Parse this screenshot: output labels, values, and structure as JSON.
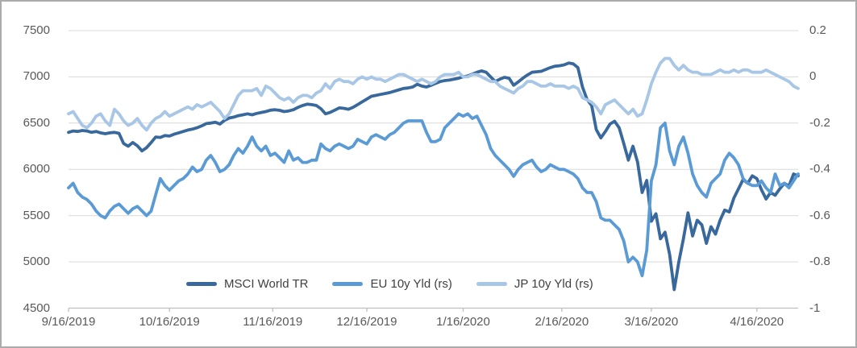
{
  "colors": {
    "gridline": "#d9d9d9",
    "axis_line": "#bfbfbf",
    "tick_text": "#595959",
    "legend_text": "#404040",
    "frame_border": "#ababab",
    "series_msci": "#38689c",
    "series_eu": "#5b9bd5",
    "series_jp": "#a8c6e5"
  },
  "chart_data": {
    "type": "line",
    "title": "",
    "grid": true,
    "legend_position": "bottom-inside",
    "left_axis": {
      "min": 4500,
      "max": 7500,
      "ticks": [
        {
          "value": 7500,
          "label": "7500"
        },
        {
          "value": 7000,
          "label": "7000"
        },
        {
          "value": 6500,
          "label": "6500"
        },
        {
          "value": 6000,
          "label": "6000"
        },
        {
          "value": 5500,
          "label": "5500"
        },
        {
          "value": 5000,
          "label": "5000"
        },
        {
          "value": 4500,
          "label": "4500"
        }
      ]
    },
    "right_axis": {
      "min": -1,
      "max": 0.2,
      "ticks": [
        {
          "value": 0.2,
          "label": "0.2"
        },
        {
          "value": 0,
          "label": "0"
        },
        {
          "value": -0.2,
          "label": "-0.2"
        },
        {
          "value": -0.4,
          "label": "-0.4"
        },
        {
          "value": -0.6,
          "label": "-0.6"
        },
        {
          "value": -0.8,
          "label": "-0.8"
        },
        {
          "value": -1,
          "label": "-1"
        }
      ]
    },
    "x_axis": {
      "unit": "trading-days",
      "ticks": [
        {
          "index": 0,
          "label": "9/16/2019"
        },
        {
          "index": 22,
          "label": "10/16/2019"
        },
        {
          "index": 44.5,
          "label": "11/16/2019"
        },
        {
          "index": 65,
          "label": "12/16/2019"
        },
        {
          "index": 86,
          "label": "1/16/2020"
        },
        {
          "index": 107.5,
          "label": "2/16/2020"
        },
        {
          "index": 127,
          "label": "3/16/2020"
        },
        {
          "index": 150,
          "label": "4/16/2020"
        }
      ]
    },
    "series": [
      {
        "name": "MSCI World TR",
        "axis": "left",
        "color": "#38689c",
        "values": [
          6400,
          6415,
          6410,
          6420,
          6415,
          6400,
          6410,
          6395,
          6385,
          6395,
          6400,
          6390,
          6280,
          6250,
          6290,
          6255,
          6200,
          6235,
          6290,
          6350,
          6345,
          6365,
          6360,
          6380,
          6395,
          6410,
          6425,
          6435,
          6450,
          6470,
          6495,
          6500,
          6510,
          6490,
          6530,
          6555,
          6565,
          6580,
          6590,
          6600,
          6590,
          6605,
          6615,
          6625,
          6640,
          6645,
          6638,
          6625,
          6632,
          6645,
          6670,
          6690,
          6705,
          6700,
          6690,
          6655,
          6600,
          6615,
          6640,
          6665,
          6660,
          6650,
          6670,
          6700,
          6730,
          6760,
          6790,
          6800,
          6810,
          6820,
          6830,
          6845,
          6860,
          6875,
          6880,
          6890,
          6920,
          6900,
          6890,
          6910,
          6930,
          6950,
          6960,
          6965,
          6975,
          6985,
          7000,
          7010,
          7030,
          7050,
          7065,
          7050,
          7000,
          6950,
          6975,
          6995,
          6985,
          6910,
          6945,
          6985,
          7020,
          7050,
          7055,
          7060,
          7080,
          7100,
          7115,
          7120,
          7130,
          7150,
          7140,
          7100,
          6890,
          6755,
          6690,
          6430,
          6340,
          6410,
          6490,
          6520,
          6450,
          6280,
          6100,
          6250,
          6080,
          5750,
          5880,
          5440,
          5520,
          5250,
          5320,
          5080,
          4700,
          5000,
          5250,
          5530,
          5280,
          5450,
          5400,
          5200,
          5380,
          5300,
          5450,
          5560,
          5540,
          5690,
          5790,
          5890,
          5850,
          5930,
          5900,
          5780,
          5680,
          5750,
          5720,
          5790,
          5850,
          5820,
          5950,
          5930
        ]
      },
      {
        "name": "EU 10y Yld (rs)",
        "axis": "right",
        "color": "#5b9bd5",
        "values": [
          -0.48,
          -0.46,
          -0.5,
          -0.52,
          -0.53,
          -0.55,
          -0.58,
          -0.6,
          -0.61,
          -0.58,
          -0.56,
          -0.55,
          -0.57,
          -0.59,
          -0.57,
          -0.56,
          -0.58,
          -0.6,
          -0.58,
          -0.51,
          -0.44,
          -0.47,
          -0.49,
          -0.47,
          -0.45,
          -0.44,
          -0.42,
          -0.39,
          -0.41,
          -0.4,
          -0.36,
          -0.34,
          -0.37,
          -0.41,
          -0.4,
          -0.38,
          -0.34,
          -0.31,
          -0.33,
          -0.3,
          -0.26,
          -0.3,
          -0.32,
          -0.3,
          -0.34,
          -0.33,
          -0.35,
          -0.37,
          -0.32,
          -0.36,
          -0.35,
          -0.37,
          -0.37,
          -0.36,
          -0.36,
          -0.29,
          -0.31,
          -0.32,
          -0.3,
          -0.29,
          -0.3,
          -0.31,
          -0.3,
          -0.27,
          -0.28,
          -0.29,
          -0.26,
          -0.25,
          -0.26,
          -0.27,
          -0.25,
          -0.24,
          -0.22,
          -0.2,
          -0.19,
          -0.19,
          -0.19,
          -0.19,
          -0.24,
          -0.28,
          -0.28,
          -0.27,
          -0.22,
          -0.2,
          -0.18,
          -0.16,
          -0.17,
          -0.16,
          -0.18,
          -0.17,
          -0.21,
          -0.25,
          -0.31,
          -0.34,
          -0.36,
          -0.38,
          -0.4,
          -0.43,
          -0.4,
          -0.38,
          -0.37,
          -0.36,
          -0.39,
          -0.41,
          -0.4,
          -0.38,
          -0.39,
          -0.4,
          -0.4,
          -0.41,
          -0.42,
          -0.44,
          -0.48,
          -0.5,
          -0.5,
          -0.54,
          -0.61,
          -0.62,
          -0.62,
          -0.64,
          -0.66,
          -0.71,
          -0.8,
          -0.78,
          -0.8,
          -0.86,
          -0.75,
          -0.45,
          -0.38,
          -0.22,
          -0.2,
          -0.32,
          -0.38,
          -0.3,
          -0.26,
          -0.33,
          -0.42,
          -0.47,
          -0.5,
          -0.52,
          -0.46,
          -0.44,
          -0.42,
          -0.36,
          -0.33,
          -0.35,
          -0.38,
          -0.44,
          -0.46,
          -0.47,
          -0.47,
          -0.45,
          -0.48,
          -0.5,
          -0.42,
          -0.47,
          -0.46,
          -0.48,
          -0.45,
          -0.42
        ]
      },
      {
        "name": "JP 10y Yld (rs)",
        "axis": "right",
        "color": "#a8c6e5",
        "values": [
          -0.16,
          -0.15,
          -0.18,
          -0.21,
          -0.22,
          -0.2,
          -0.17,
          -0.16,
          -0.19,
          -0.21,
          -0.14,
          -0.16,
          -0.19,
          -0.21,
          -0.2,
          -0.18,
          -0.21,
          -0.23,
          -0.2,
          -0.18,
          -0.17,
          -0.15,
          -0.17,
          -0.16,
          -0.15,
          -0.14,
          -0.13,
          -0.14,
          -0.12,
          -0.13,
          -0.12,
          -0.11,
          -0.13,
          -0.15,
          -0.18,
          -0.16,
          -0.12,
          -0.08,
          -0.06,
          -0.06,
          -0.06,
          -0.05,
          -0.08,
          -0.04,
          -0.05,
          -0.07,
          -0.09,
          -0.1,
          -0.09,
          -0.11,
          -0.09,
          -0.08,
          -0.08,
          -0.09,
          -0.07,
          -0.06,
          -0.03,
          -0.05,
          -0.02,
          -0.01,
          -0.02,
          -0.02,
          -0.03,
          -0.01,
          0.0,
          -0.01,
          0.0,
          -0.01,
          -0.01,
          -0.02,
          -0.01,
          0.0,
          0.01,
          0.01,
          0.0,
          -0.01,
          -0.02,
          -0.01,
          -0.02,
          -0.03,
          -0.02,
          0.0,
          0.01,
          0.01,
          0.01,
          0.02,
          0.0,
          0.0,
          0.01,
          0.01,
          0.0,
          -0.01,
          -0.02,
          -0.02,
          -0.04,
          -0.05,
          -0.06,
          -0.07,
          -0.05,
          -0.04,
          -0.02,
          -0.02,
          -0.03,
          -0.04,
          -0.04,
          -0.03,
          -0.04,
          -0.04,
          -0.04,
          -0.05,
          -0.04,
          -0.05,
          -0.09,
          -0.1,
          -0.11,
          -0.13,
          -0.16,
          -0.12,
          -0.11,
          -0.1,
          -0.12,
          -0.14,
          -0.16,
          -0.14,
          -0.17,
          -0.16,
          -0.1,
          -0.03,
          0.02,
          0.06,
          0.08,
          0.08,
          0.05,
          0.03,
          0.05,
          0.03,
          0.02,
          0.02,
          0.01,
          0.01,
          0.01,
          0.02,
          0.03,
          0.02,
          0.02,
          0.03,
          0.02,
          0.03,
          0.03,
          0.02,
          0.02,
          0.02,
          0.03,
          0.02,
          0.01,
          0.0,
          -0.01,
          -0.02,
          -0.04,
          -0.05
        ]
      }
    ]
  }
}
